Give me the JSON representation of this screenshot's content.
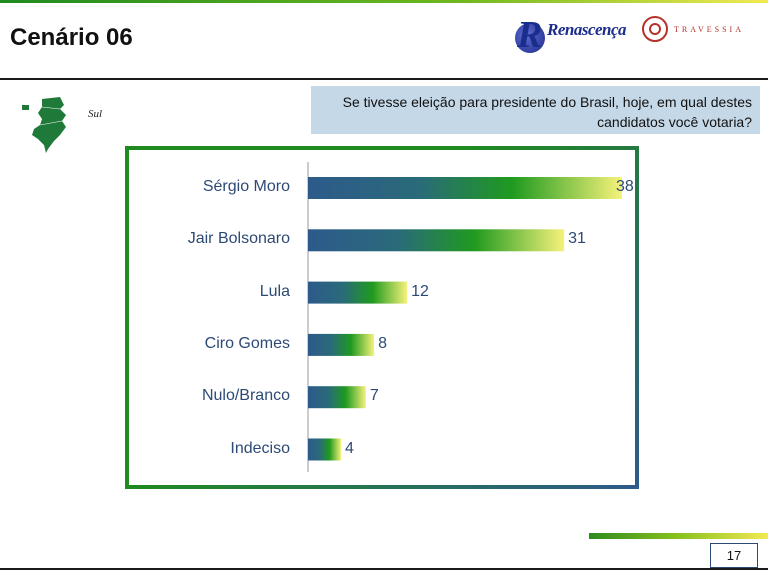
{
  "header": {
    "title": "Cenário 06",
    "logo_renascenca": "Renascença",
    "logo_travessia": "TRAVESSIA"
  },
  "region": {
    "label": "Sul",
    "icon": "brazil-south-map-icon"
  },
  "question": "Se tivesse eleição para presidente do Brasil, hoje, em qual destes candidatos você votaria?",
  "chart_data": {
    "type": "bar",
    "orientation": "horizontal",
    "categories": [
      "Sérgio Moro",
      "Jair Bolsonaro",
      "Lula",
      "Ciro Gomes",
      "Nulo/Branco",
      "Indeciso"
    ],
    "values": [
      38,
      31,
      12,
      8,
      7,
      4
    ],
    "title": "",
    "xlabel": "",
    "ylabel": "",
    "xlim": [
      0,
      38
    ],
    "grid": false,
    "colors": {
      "bar_start": "#2d5a8a",
      "bar_mid": "#1f9a1f",
      "bar_end": "#f6f27a"
    }
  },
  "footer": {
    "page_number": "17"
  }
}
